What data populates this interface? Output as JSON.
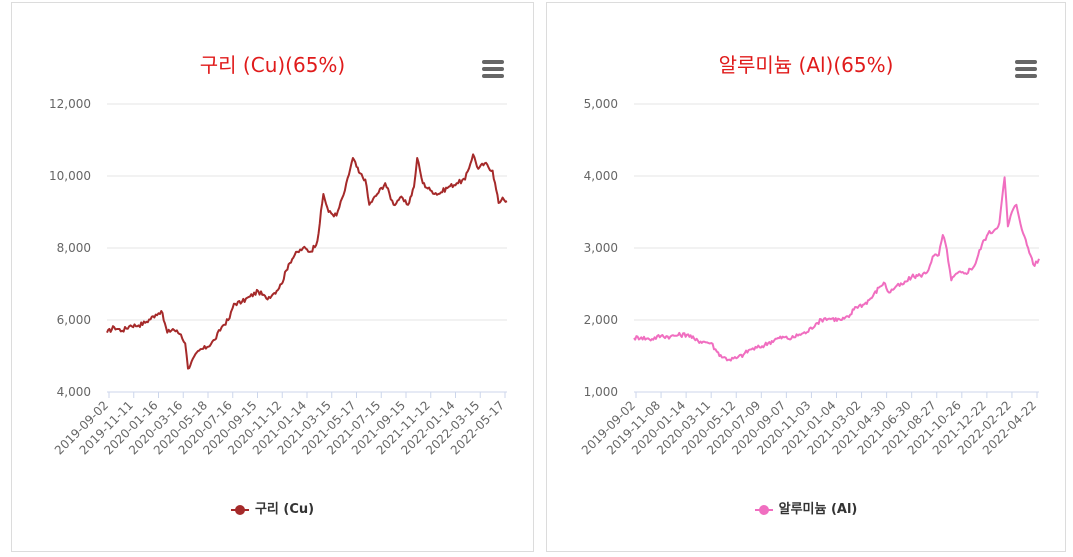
{
  "charts": [
    {
      "title": "구리 (Cu)(65%)",
      "legend": "구리 (Cu)",
      "color": "#a52a2a",
      "title_color": "#e01b1b",
      "menu_icon": "hamburger-menu-icon",
      "chart_data": {
        "type": "line",
        "title": "구리 (Cu)(65%)",
        "xlabel": "",
        "ylabel": "",
        "ylim": [
          4000,
          12000
        ],
        "yticks": [
          "4,000",
          "6,000",
          "8,000",
          "10,000",
          "12,000"
        ],
        "ytick_values": [
          4000,
          6000,
          8000,
          10000,
          12000
        ],
        "xticks": [
          "2019-09-02",
          "2019-11-11",
          "2020-01-16",
          "2020-03-16",
          "2020-05-18",
          "2020-07-16",
          "2020-09-15",
          "2020-11-12",
          "2021-01-14",
          "2021-03-15",
          "2021-05-17",
          "2021-07-15",
          "2021-09-15",
          "2021-11-12",
          "2022-01-14",
          "2022-03-15",
          "2022-05-17"
        ],
        "x_range": [
          "2019-09-02",
          "2022-05-31"
        ],
        "grid": true,
        "legend_position": "bottom",
        "series": [
          {
            "name": "구리 (Cu)",
            "points": [
              [
                "2019-09-02",
                5650
              ],
              [
                "2019-09-20",
                5800
              ],
              [
                "2019-10-10",
                5700
              ],
              [
                "2019-10-31",
                5850
              ],
              [
                "2019-11-20",
                5850
              ],
              [
                "2019-12-10",
                5950
              ],
              [
                "2020-01-02",
                6150
              ],
              [
                "2020-01-16",
                6250
              ],
              [
                "2020-01-31",
                5650
              ],
              [
                "2020-02-14",
                5750
              ],
              [
                "2020-03-05",
                5600
              ],
              [
                "2020-03-16",
                5350
              ],
              [
                "2020-03-23",
                4650
              ],
              [
                "2020-04-01",
                4850
              ],
              [
                "2020-04-20",
                5150
              ],
              [
                "2020-05-10",
                5250
              ],
              [
                "2020-05-29",
                5450
              ],
              [
                "2020-06-15",
                5800
              ],
              [
                "2020-07-05",
                6050
              ],
              [
                "2020-07-16",
                6450
              ],
              [
                "2020-08-05",
                6500
              ],
              [
                "2020-08-25",
                6650
              ],
              [
                "2020-09-15",
                6800
              ],
              [
                "2020-10-05",
                6600
              ],
              [
                "2020-10-25",
                6750
              ],
              [
                "2020-11-12",
                7000
              ],
              [
                "2020-11-30",
                7550
              ],
              [
                "2020-12-15",
                7800
              ],
              [
                "2021-01-05",
                8000
              ],
              [
                "2021-01-25",
                7900
              ],
              [
                "2021-02-10",
                8200
              ],
              [
                "2021-02-25",
                9500
              ],
              [
                "2021-03-10",
                9000
              ],
              [
                "2021-03-30",
                8900
              ],
              [
                "2021-04-20",
                9600
              ],
              [
                "2021-05-10",
                10500
              ],
              [
                "2021-05-25",
                10100
              ],
              [
                "2021-06-10",
                9900
              ],
              [
                "2021-06-20",
                9200
              ],
              [
                "2021-07-10",
                9500
              ],
              [
                "2021-07-30",
                9800
              ],
              [
                "2021-08-20",
                9200
              ],
              [
                "2021-09-05",
                9400
              ],
              [
                "2021-09-25",
                9200
              ],
              [
                "2021-10-10",
                9700
              ],
              [
                "2021-10-18",
                10500
              ],
              [
                "2021-11-01",
                9800
              ],
              [
                "2021-11-20",
                9600
              ],
              [
                "2021-12-10",
                9500
              ],
              [
                "2022-01-05",
                9700
              ],
              [
                "2022-01-25",
                9800
              ],
              [
                "2022-02-15",
                9900
              ],
              [
                "2022-03-07",
                10600
              ],
              [
                "2022-03-20",
                10200
              ],
              [
                "2022-04-05",
                10350
              ],
              [
                "2022-04-25",
                10150
              ],
              [
                "2022-05-10",
                9250
              ],
              [
                "2022-05-20",
                9400
              ],
              [
                "2022-05-31",
                9300
              ]
            ]
          }
        ]
      }
    },
    {
      "title": "알루미늄 (Al)(65%)",
      "legend": "알루미늄 (Al)",
      "color": "#f06ec0",
      "title_color": "#e01b1b",
      "menu_icon": "hamburger-menu-icon",
      "chart_data": {
        "type": "line",
        "title": "알루미늄 (Al)(65%)",
        "xlabel": "",
        "ylabel": "",
        "ylim": [
          1000,
          5000
        ],
        "yticks": [
          "1,000",
          "2,000",
          "3,000",
          "4,000",
          "5,000"
        ],
        "ytick_values": [
          1000,
          2000,
          3000,
          4000,
          5000
        ],
        "xticks": [
          "2019-09-02",
          "2019-11-08",
          "2020-01-14",
          "2020-03-11",
          "2020-05-12",
          "2020-07-09",
          "2020-09-07",
          "2020-11-03",
          "2021-01-04",
          "2021-03-02",
          "2021-04-30",
          "2021-06-30",
          "2021-08-27",
          "2021-10-26",
          "2021-12-22",
          "2022-02-22",
          "2022-04-22"
        ],
        "x_range": [
          "2019-09-02",
          "2022-05-31"
        ],
        "grid": true,
        "legend_position": "bottom",
        "series": [
          {
            "name": "알루미늄 (Al)",
            "points": [
              [
                "2019-09-02",
                1750
              ],
              [
                "2019-09-20",
                1760
              ],
              [
                "2019-10-10",
                1730
              ],
              [
                "2019-11-08",
                1780
              ],
              [
                "2019-12-01",
                1770
              ],
              [
                "2019-12-20",
                1790
              ],
              [
                "2020-01-14",
                1800
              ],
              [
                "2020-02-01",
                1720
              ],
              [
                "2020-02-20",
                1700
              ],
              [
                "2020-03-11",
                1680
              ],
              [
                "2020-03-25",
                1560
              ],
              [
                "2020-04-10",
                1480
              ],
              [
                "2020-04-25",
                1450
              ],
              [
                "2020-05-12",
                1470
              ],
              [
                "2020-05-30",
                1520
              ],
              [
                "2020-06-15",
                1590
              ],
              [
                "2020-07-09",
                1620
              ],
              [
                "2020-07-30",
                1680
              ],
              [
                "2020-08-20",
                1740
              ],
              [
                "2020-09-07",
                1760
              ],
              [
                "2020-09-25",
                1740
              ],
              [
                "2020-10-15",
                1800
              ],
              [
                "2020-11-03",
                1830
              ],
              [
                "2020-11-25",
                1950
              ],
              [
                "2020-12-15",
                2020
              ],
              [
                "2021-01-04",
                2020
              ],
              [
                "2021-01-25",
                2000
              ],
              [
                "2021-02-15",
                2040
              ],
              [
                "2021-03-02",
                2180
              ],
              [
                "2021-03-25",
                2220
              ],
              [
                "2021-04-15",
                2330
              ],
              [
                "2021-04-30",
                2450
              ],
              [
                "2021-05-12",
                2520
              ],
              [
                "2021-05-25",
                2380
              ],
              [
                "2021-06-10",
                2460
              ],
              [
                "2021-06-30",
                2500
              ],
              [
                "2021-07-20",
                2600
              ],
              [
                "2021-08-10",
                2620
              ],
              [
                "2021-08-27",
                2660
              ],
              [
                "2021-09-10",
                2880
              ],
              [
                "2021-09-25",
                2900
              ],
              [
                "2021-10-05",
                3180
              ],
              [
                "2021-10-15",
                2980
              ],
              [
                "2021-10-26",
                2550
              ],
              [
                "2021-11-10",
                2650
              ],
              [
                "2021-11-30",
                2650
              ],
              [
                "2021-12-22",
                2750
              ],
              [
                "2022-01-10",
                3050
              ],
              [
                "2022-01-25",
                3200
              ],
              [
                "2022-02-10",
                3250
              ],
              [
                "2022-02-22",
                3350
              ],
              [
                "2022-03-07",
                3980
              ],
              [
                "2022-03-15",
                3300
              ],
              [
                "2022-03-25",
                3500
              ],
              [
                "2022-04-05",
                3600
              ],
              [
                "2022-04-22",
                3200
              ],
              [
                "2022-05-10",
                2900
              ],
              [
                "2022-05-20",
                2750
              ],
              [
                "2022-05-31",
                2850
              ]
            ]
          }
        ]
      }
    }
  ]
}
